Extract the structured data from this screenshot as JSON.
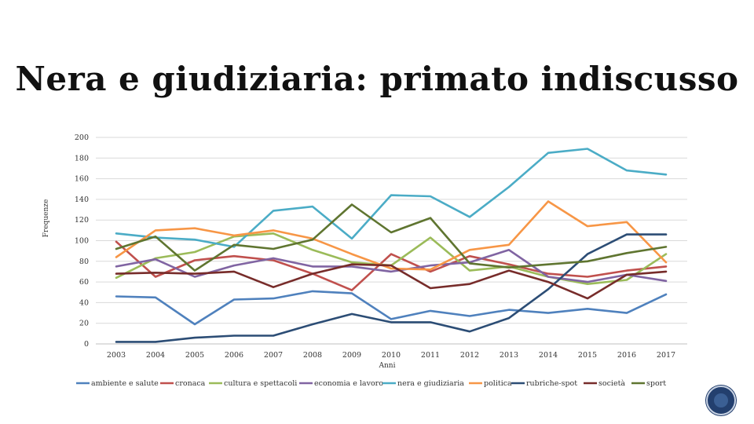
{
  "slide": {
    "title": "Nera e giudiziaria: primato indiscusso"
  },
  "chart_data": {
    "type": "line",
    "title": "",
    "xlabel": "Anni",
    "ylabel": "Frequenze",
    "ylim": [
      0,
      200
    ],
    "yticks": [
      0,
      20,
      40,
      60,
      80,
      100,
      120,
      140,
      160,
      180,
      200
    ],
    "grid": true,
    "legend_position": "bottom",
    "x": [
      "2003",
      "2004",
      "2005",
      "2006",
      "2007",
      "2008",
      "2009",
      "2010",
      "2011",
      "2012",
      "2013",
      "2014",
      "2015",
      "2016",
      "2017"
    ],
    "series": [
      {
        "name": "ambiente e salute",
        "color": "#4f81bd",
        "values": [
          46,
          45,
          19,
          43,
          44,
          51,
          49,
          24,
          32,
          27,
          33,
          30,
          34,
          30,
          48
        ]
      },
      {
        "name": "cronaca",
        "color": "#c0504d",
        "values": [
          99,
          65,
          81,
          85,
          81,
          68,
          52,
          87,
          70,
          85,
          77,
          68,
          65,
          71,
          75
        ]
      },
      {
        "name": "cultura e spettacoli",
        "color": "#9bbb59",
        "values": [
          64,
          83,
          89,
          104,
          107,
          91,
          79,
          76,
          103,
          71,
          75,
          65,
          58,
          62,
          87
        ]
      },
      {
        "name": "economia e lavoro",
        "color": "#8064a2",
        "values": [
          75,
          82,
          65,
          76,
          83,
          75,
          75,
          70,
          76,
          79,
          91,
          65,
          60,
          67,
          61
        ]
      },
      {
        "name": "nera e giudiziaria",
        "color": "#4bacc6",
        "values": [
          107,
          103,
          101,
          94,
          129,
          133,
          102,
          144,
          143,
          123,
          152,
          185,
          189,
          168,
          164
        ]
      },
      {
        "name": "politica",
        "color": "#f79646",
        "values": [
          84,
          110,
          112,
          105,
          110,
          102,
          87,
          73,
          72,
          91,
          96,
          138,
          114,
          118,
          79
        ]
      },
      {
        "name": "rubriche-spot",
        "color": "#2c4d75",
        "values": [
          2,
          2,
          6,
          8,
          8,
          19,
          29,
          21,
          21,
          12,
          25,
          53,
          87,
          106,
          106
        ]
      },
      {
        "name": "società",
        "color": "#772c2a",
        "values": [
          68,
          69,
          68,
          70,
          55,
          68,
          77,
          76,
          54,
          58,
          71,
          60,
          44,
          67,
          70
        ]
      },
      {
        "name": "sport",
        "color": "#5f7530",
        "values": [
          92,
          104,
          71,
          96,
          92,
          101,
          135,
          108,
          122,
          78,
          74,
          77,
          80,
          88,
          94
        ]
      }
    ]
  },
  "decor": {
    "badge_icon": "logo-badge-icon"
  }
}
